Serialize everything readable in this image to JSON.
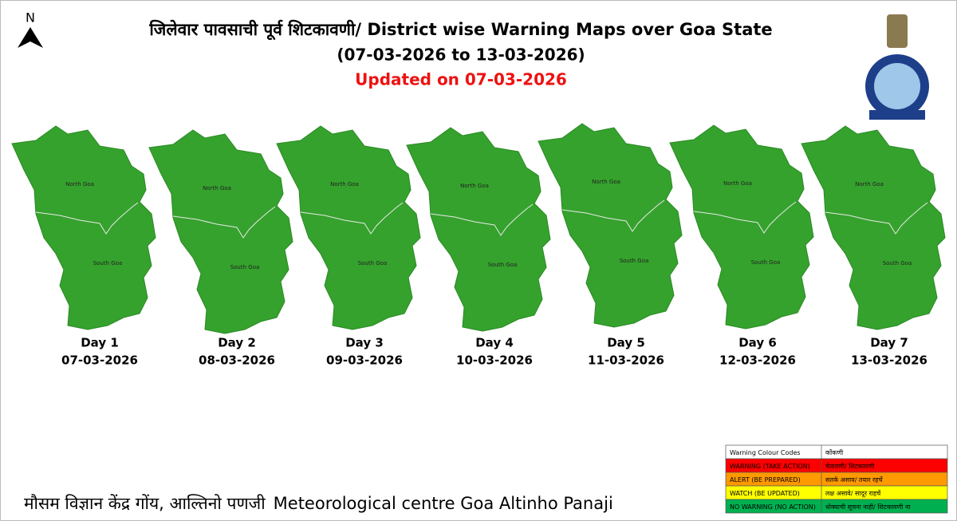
{
  "header": {
    "title": "जिलेवार पावसाची पूर्व शिटकावणी/ District wise Warning Maps over Goa State",
    "period": "(07-03-2026 to 13-03-2026)",
    "updated": "Updated on 07-03-2026",
    "north": "N"
  },
  "maps": [
    {
      "day": "Day 1",
      "date": "07-03-2026",
      "north": "North Goa",
      "south": "South Goa",
      "color": "#35a22d"
    },
    {
      "day": "Day 2",
      "date": "08-03-2026",
      "north": "North Goa",
      "south": "South Goa",
      "color": "#35a22d"
    },
    {
      "day": "Day 3",
      "date": "09-03-2026",
      "north": "North Goa",
      "south": "South Goa",
      "color": "#35a22d"
    },
    {
      "day": "Day 4",
      "date": "10-03-2026",
      "north": "North Goa",
      "south": "South Goa",
      "color": "#35a22d"
    },
    {
      "day": "Day 5",
      "date": "11-03-2026",
      "north": "North Goa",
      "south": "South Goa",
      "color": "#35a22d"
    },
    {
      "day": "Day 6",
      "date": "12-03-2026",
      "north": "North Goa",
      "south": "South Goa",
      "color": "#35a22d"
    },
    {
      "day": "Day 7",
      "date": "13-03-2026",
      "north": "North Goa",
      "south": "South Goa",
      "color": "#35a22d"
    }
  ],
  "legend": {
    "rows": [
      {
        "code": "Warning Colour Codes",
        "konkani": "कोंकणी",
        "color": "#ffffff"
      },
      {
        "code": "WARNING (TAKE ACTION)",
        "konkani": "चेतावणी/ शिटकावणी",
        "color": "#ff0000"
      },
      {
        "code": "ALERT (BE PREPARED)",
        "konkani": "सतर्क असाव/ तयार रहचें",
        "color": "#ff9900"
      },
      {
        "code": "WATCH (BE UPDATED)",
        "konkani": "लक्ष असावे/ सादूर राहचें",
        "color": "#ffff00"
      },
      {
        "code": "NO WARNING (NO ACTION)",
        "konkani": "धोक्याची सूचना नाही/ शिटकावणी ना",
        "color": "#00b050"
      }
    ]
  },
  "footer": {
    "hindi": "मौसम विज्ञान केंद्र गोंय, आल्तिनो पणजी",
    "english": "Meteorological centre Goa Altinho Panaji"
  }
}
